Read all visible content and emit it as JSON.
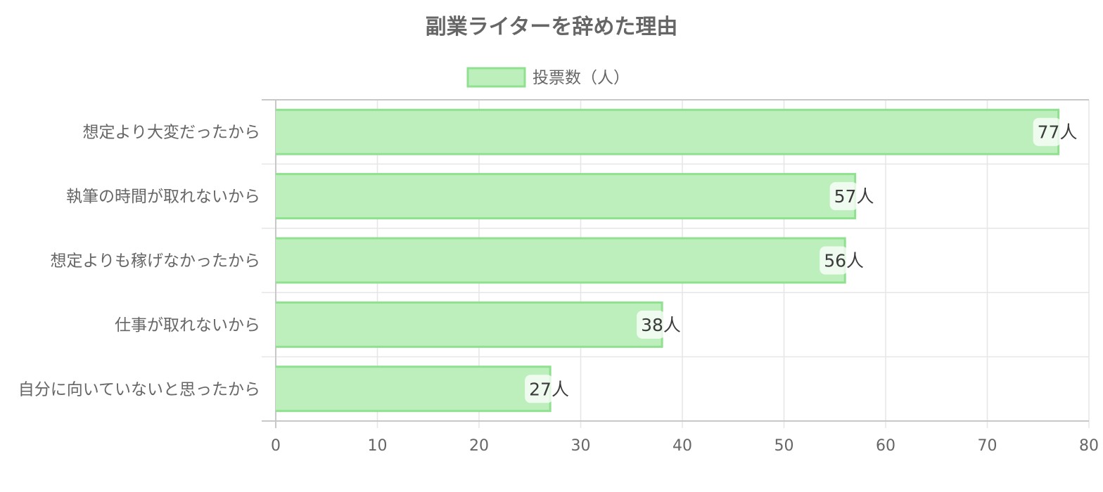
{
  "chart_data": {
    "type": "bar",
    "orientation": "horizontal",
    "title": "副業ライターを辞めた理由",
    "categories": [
      "想定より大変だったから",
      "執筆の時間が取れないから",
      "想定よりも稼げなかったから",
      "仕事が取れないから",
      "自分に向いていないと思ったから"
    ],
    "series": [
      {
        "name": "投票数（人）",
        "values": [
          77,
          57,
          56,
          38,
          27
        ],
        "value_suffix": "人"
      }
    ],
    "xlim": [
      0,
      80
    ],
    "x_ticks": [
      0,
      10,
      20,
      30,
      40,
      50,
      60,
      70,
      80
    ],
    "grid": true,
    "legend_position": "top",
    "bar_fill_color": "#bdefbd",
    "bar_border_color": "#8fe08f"
  }
}
